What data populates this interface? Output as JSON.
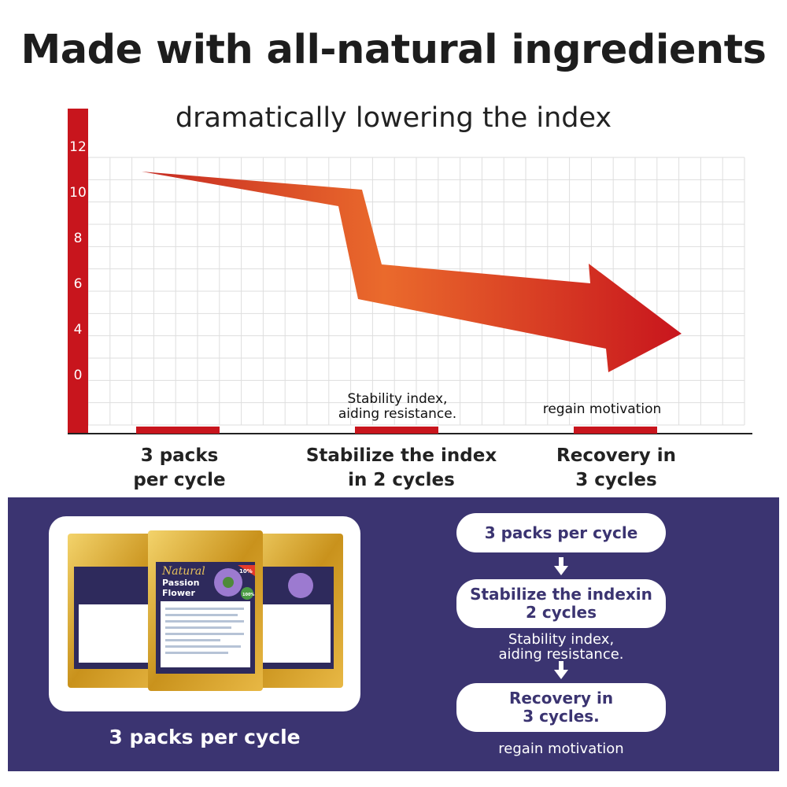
{
  "header": {
    "title": "Made with all-natural ingredients",
    "subtitle": "dramatically lowering the index"
  },
  "chart_data": {
    "type": "bar",
    "title": "dramatically lowering the index",
    "categories": [
      "3 packs\nper cycle",
      "Stabilize the index\nin 2 cycles",
      "Recovery in\n3 cycles"
    ],
    "y_tick_labels": [
      "12",
      "10",
      "8",
      "6",
      "4",
      "0"
    ],
    "ylim": [
      0,
      12
    ],
    "grid": true,
    "annotations": [
      "Stability index,\naiding resistance.",
      "regain motivation"
    ],
    "trend_arrow": {
      "direction": "down",
      "color_start": "#e9582c",
      "color_end": "#c8151d"
    },
    "accent_color": "#c8151d"
  },
  "chart_notes": {
    "cat1_line1": "3 packs",
    "cat1_line2": "per cycle",
    "cat2_line1": "Stabilize the index",
    "cat2_line2": "in 2 cycles",
    "cat3_line1": "Recovery in",
    "cat3_line2": "3 cycles",
    "note1_line1": "Stability index,",
    "note1_line2": "aiding resistance.",
    "note2": "regain motivation"
  },
  "product": {
    "brand_line1": "Natural",
    "brand_line2": "Passion",
    "brand_line3": "Flower",
    "badge": "10%",
    "organic_badge": "100%",
    "caption": "3 packs per cycle"
  },
  "flow": {
    "step1": "3 packs per cycle",
    "step2_line1": "Stabilize the indexin",
    "step2_line2": "2 cycles",
    "note1_line1": "Stability index,",
    "note1_line2": "aiding resistance.",
    "step3_line1": "Recovery in",
    "step3_line2": "3 cycles.",
    "note2": "regain motivation"
  },
  "colors": {
    "panel": "#3b3471",
    "accent_red": "#c8151d",
    "gold": "#d9a92a"
  }
}
